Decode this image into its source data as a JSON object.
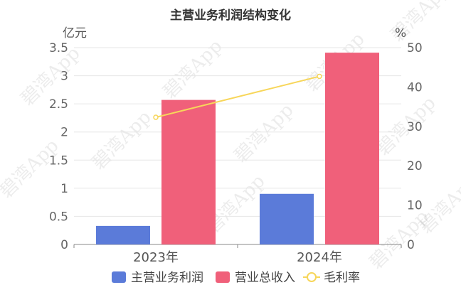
{
  "chart_data": {
    "type": "bar",
    "title": "主营业务利润结构变化",
    "categories": [
      "2023年",
      "2024年"
    ],
    "series": [
      {
        "name": "主营业务利润",
        "type": "bar",
        "axis": "left",
        "values": [
          0.33,
          0.9
        ],
        "color": "#5b7bd9"
      },
      {
        "name": "营业总收入",
        "type": "bar",
        "axis": "left",
        "values": [
          2.57,
          3.41
        ],
        "color": "#f0607a"
      },
      {
        "name": "毛利率",
        "type": "line",
        "axis": "right",
        "values": [
          32.3,
          42.7
        ],
        "color": "#f7d65a"
      }
    ],
    "y_left": {
      "unit": "亿元",
      "range": [
        0,
        3.5
      ],
      "ticks": [
        "0",
        "0.5",
        "1",
        "1.5",
        "2",
        "2.5",
        "3",
        "3.5"
      ]
    },
    "y_right": {
      "unit": "%",
      "range": [
        0,
        50
      ],
      "ticks": [
        "0",
        "10",
        "20",
        "30",
        "40",
        "50"
      ]
    },
    "grid": true,
    "legend": "bottom",
    "watermark": "碧湾App"
  }
}
